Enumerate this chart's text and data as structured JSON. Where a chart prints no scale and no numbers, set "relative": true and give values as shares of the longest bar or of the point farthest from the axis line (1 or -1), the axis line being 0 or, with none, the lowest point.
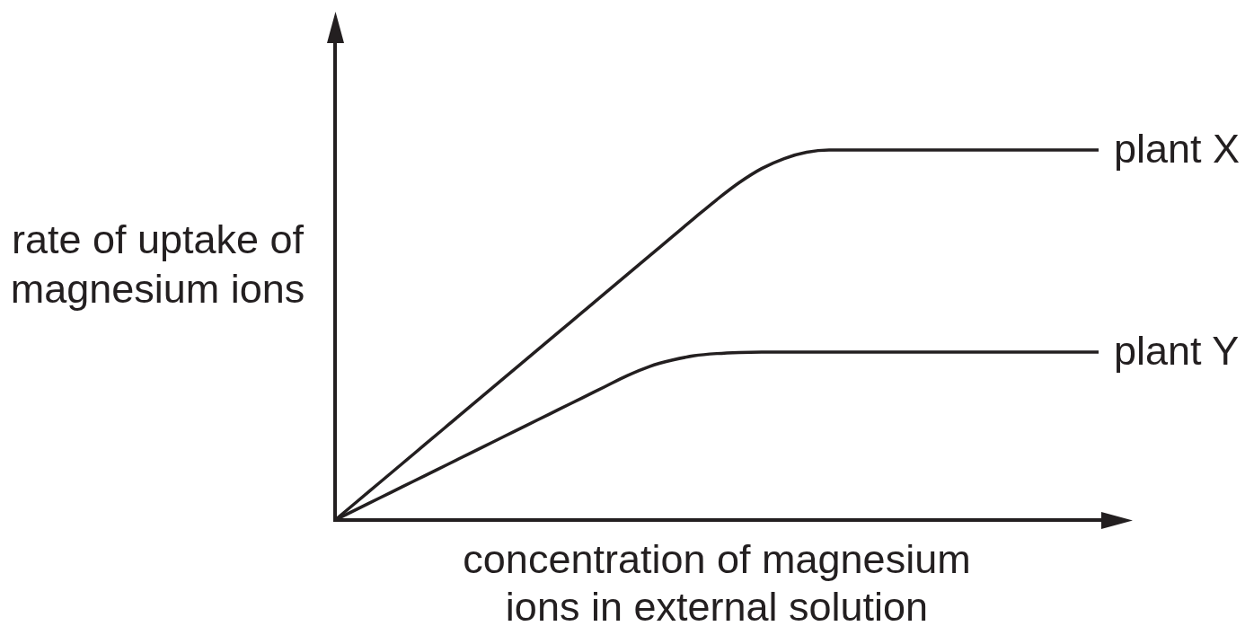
{
  "chart_data": {
    "type": "line",
    "xlabel": "concentration of magnesium ions in external solution",
    "ylabel": "rate of uptake of magnesium ions",
    "relative": true,
    "marker": "none",
    "line_style": "solid",
    "categories": [
      null,
      null,
      null,
      null,
      null,
      null,
      null,
      null,
      null,
      null,
      null,
      null,
      null,
      null,
      null,
      null,
      null,
      null,
      null,
      null,
      null,
      null,
      null,
      null,
      null,
      null,
      null,
      null,
      null,
      null,
      null,
      null,
      null,
      null,
      null
    ],
    "series": [
      {
        "name": "plant X",
        "color": "#231f20",
        "values": [
          0,
          0.051,
          0.102,
          0.153,
          0.204,
          0.255,
          0.306,
          0.357,
          0.408,
          0.459,
          0.51,
          0.561,
          0.612,
          0.663,
          0.714,
          0.765,
          0.816,
          0.866,
          0.912,
          0.95,
          0.977,
          0.994,
          1,
          1,
          1,
          1,
          1,
          1,
          1,
          1,
          1,
          1,
          1,
          1,
          1
        ]
      },
      {
        "name": "plant Y",
        "color": "#231f20",
        "values": [
          0,
          0.03,
          0.06,
          0.09,
          0.12,
          0.15,
          0.18,
          0.21,
          0.24,
          0.27,
          0.3,
          0.33,
          0.36,
          0.39,
          0.415,
          0.432,
          0.444,
          0.45,
          0.453,
          0.454,
          0.454,
          0.454,
          0.454,
          0.454,
          0.454,
          0.454,
          0.454,
          0.454,
          0.454,
          0.454,
          0.454,
          0.454,
          0.454,
          0.454,
          0.454
        ]
      }
    ]
  }
}
